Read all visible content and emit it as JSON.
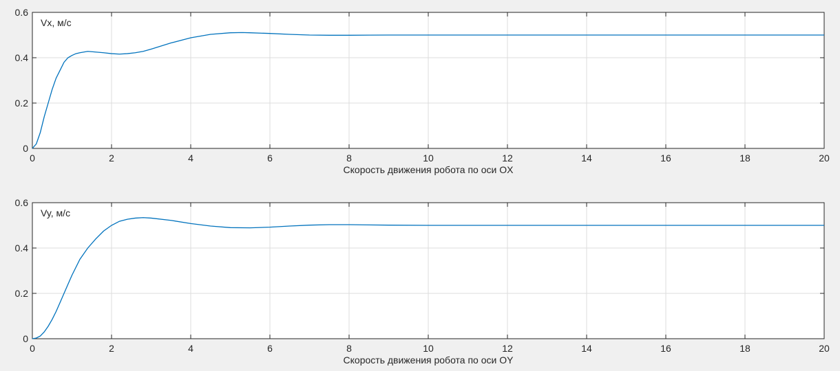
{
  "colors": {
    "figure_background": "#f0f0f0",
    "axes_background": "#ffffff",
    "grid": "#dcdcdc",
    "axis": "#262626",
    "line": "#0072bd"
  },
  "chart_data": [
    {
      "type": "line",
      "xlabel": "Скорость движения робота по оси OX",
      "ylabel": "",
      "annotation": "Vx, м/с",
      "xlim": [
        0,
        20
      ],
      "ylim": [
        0,
        0.6
      ],
      "grid": true,
      "xticks": [
        "0",
        "2",
        "4",
        "6",
        "8",
        "10",
        "12",
        "14",
        "16",
        "18",
        "20"
      ],
      "yticks": [
        "0",
        "0.2",
        "0.4",
        "0.6"
      ],
      "series": [
        {
          "x": [
            0,
            0.1,
            0.2,
            0.3,
            0.4,
            0.5,
            0.6,
            0.7,
            0.8,
            0.9,
            1.0,
            1.1,
            1.2,
            1.4,
            1.6,
            1.8,
            2.0,
            2.2,
            2.4,
            2.6,
            2.8,
            3.0,
            3.5,
            4.0,
            4.5,
            5.0,
            5.3,
            5.5,
            6.0,
            6.5,
            7.0,
            7.5,
            8.0,
            8.5,
            9.0,
            9.5,
            10,
            11,
            12,
            13,
            14,
            15,
            16,
            17,
            18,
            19,
            20
          ],
          "y": [
            0,
            0.02,
            0.07,
            0.14,
            0.2,
            0.26,
            0.31,
            0.345,
            0.38,
            0.4,
            0.41,
            0.418,
            0.422,
            0.428,
            0.425,
            0.422,
            0.418,
            0.416,
            0.418,
            0.422,
            0.428,
            0.438,
            0.465,
            0.488,
            0.503,
            0.51,
            0.511,
            0.51,
            0.507,
            0.503,
            0.5,
            0.499,
            0.499,
            0.4995,
            0.5,
            0.5,
            0.5,
            0.5,
            0.5,
            0.5,
            0.5,
            0.5,
            0.5,
            0.5,
            0.5,
            0.5,
            0.5
          ]
        }
      ]
    },
    {
      "type": "line",
      "xlabel": "Скорость движения робота по оси OY",
      "ylabel": "",
      "annotation": "Vy, м/с",
      "xlim": [
        0,
        20
      ],
      "ylim": [
        0,
        0.6
      ],
      "grid": true,
      "xticks": [
        "0",
        "2",
        "4",
        "6",
        "8",
        "10",
        "12",
        "14",
        "16",
        "18",
        "20"
      ],
      "yticks": [
        "0",
        "0.2",
        "0.4",
        "0.6"
      ],
      "series": [
        {
          "x": [
            0,
            0.1,
            0.2,
            0.3,
            0.4,
            0.5,
            0.6,
            0.7,
            0.8,
            0.9,
            1.0,
            1.2,
            1.4,
            1.6,
            1.8,
            2.0,
            2.2,
            2.4,
            2.6,
            2.8,
            3.0,
            3.5,
            4.0,
            4.5,
            5.0,
            5.5,
            6.0,
            6.5,
            7.0,
            7.5,
            8.0,
            8.5,
            9.0,
            10,
            11,
            12,
            13,
            14,
            15,
            16,
            17,
            18,
            19,
            20
          ],
          "y": [
            0,
            0.003,
            0.012,
            0.03,
            0.055,
            0.085,
            0.12,
            0.16,
            0.2,
            0.24,
            0.28,
            0.35,
            0.4,
            0.44,
            0.475,
            0.5,
            0.518,
            0.527,
            0.532,
            0.534,
            0.532,
            0.522,
            0.508,
            0.497,
            0.49,
            0.489,
            0.492,
            0.497,
            0.501,
            0.503,
            0.503,
            0.502,
            0.501,
            0.5,
            0.5,
            0.5,
            0.5,
            0.5,
            0.5,
            0.5,
            0.5,
            0.5,
            0.5,
            0.5
          ]
        }
      ]
    }
  ]
}
